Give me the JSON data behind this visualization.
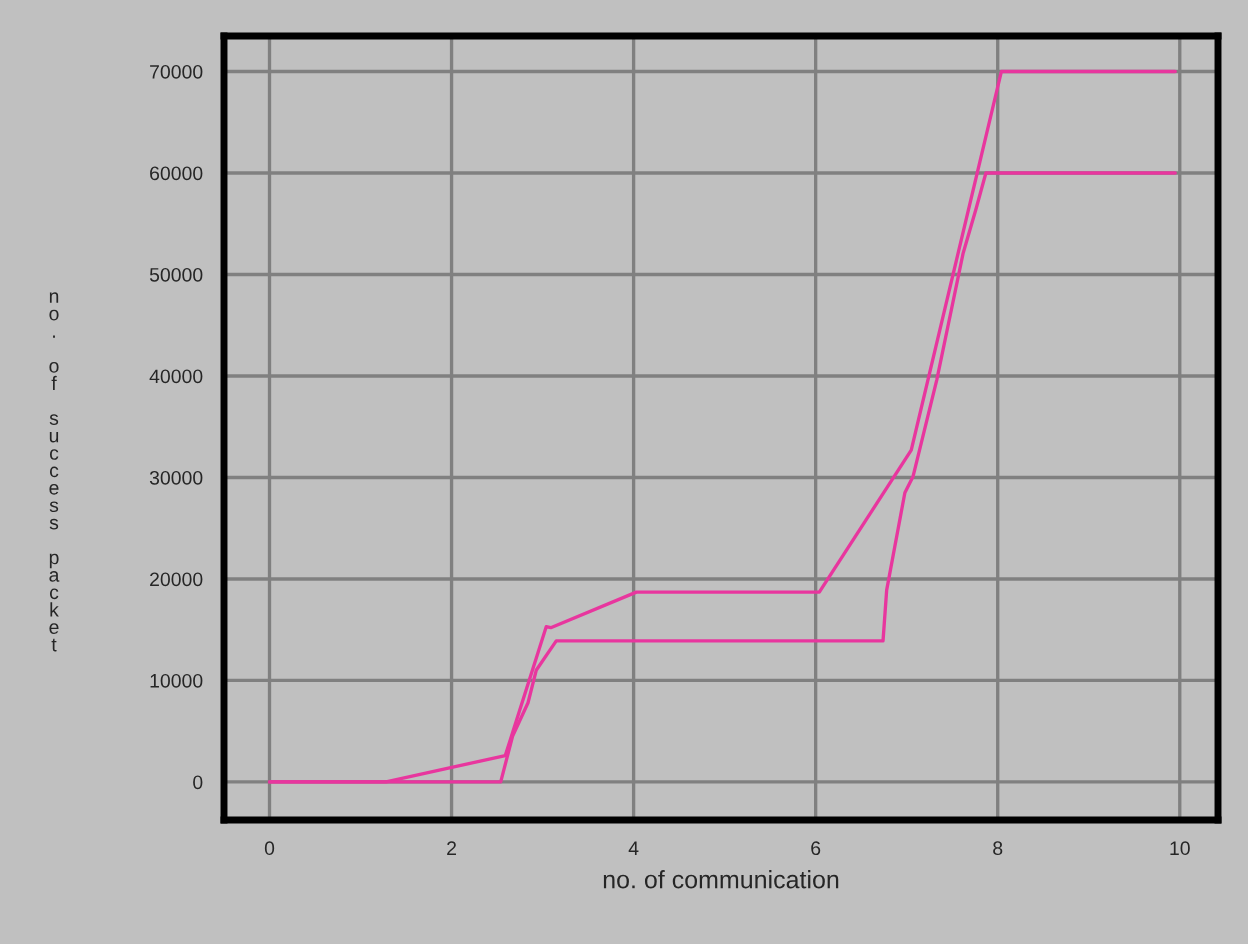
{
  "chart_data": {
    "type": "line",
    "xlabel": "no. of communication",
    "ylabel": "no. of success packet",
    "xlim": [
      -0.5,
      10.42
    ],
    "ylim": [
      -3750,
      73500
    ],
    "xticks": [
      0,
      2,
      4,
      6,
      8,
      10
    ],
    "yticks": [
      0,
      10000,
      20000,
      30000,
      40000,
      50000,
      60000,
      70000
    ],
    "grid": true,
    "legend": false,
    "marker": "none",
    "line_style": "solid",
    "series": [
      {
        "color": "#e8369e",
        "x": [
          0,
          1.28,
          2.59,
          3.04,
          3.09,
          4.03,
          6.04,
          7.05,
          8.04,
          9.95
        ],
        "values": [
          0,
          0,
          2600,
          15300,
          15200,
          18700,
          18700,
          32700,
          70000,
          70000
        ]
      },
      {
        "color": "#e8369e",
        "x": [
          0,
          2.54,
          2.67,
          2.84,
          2.93,
          3.15,
          6.74,
          6.78,
          6.98,
          7.07,
          7.33,
          7.62,
          7.76,
          7.87,
          9.95
        ],
        "values": [
          0,
          0,
          4500,
          7800,
          11000,
          13900,
          13900,
          18900,
          28500,
          30100,
          39600,
          52100,
          56400,
          60000,
          60000
        ]
      }
    ]
  }
}
